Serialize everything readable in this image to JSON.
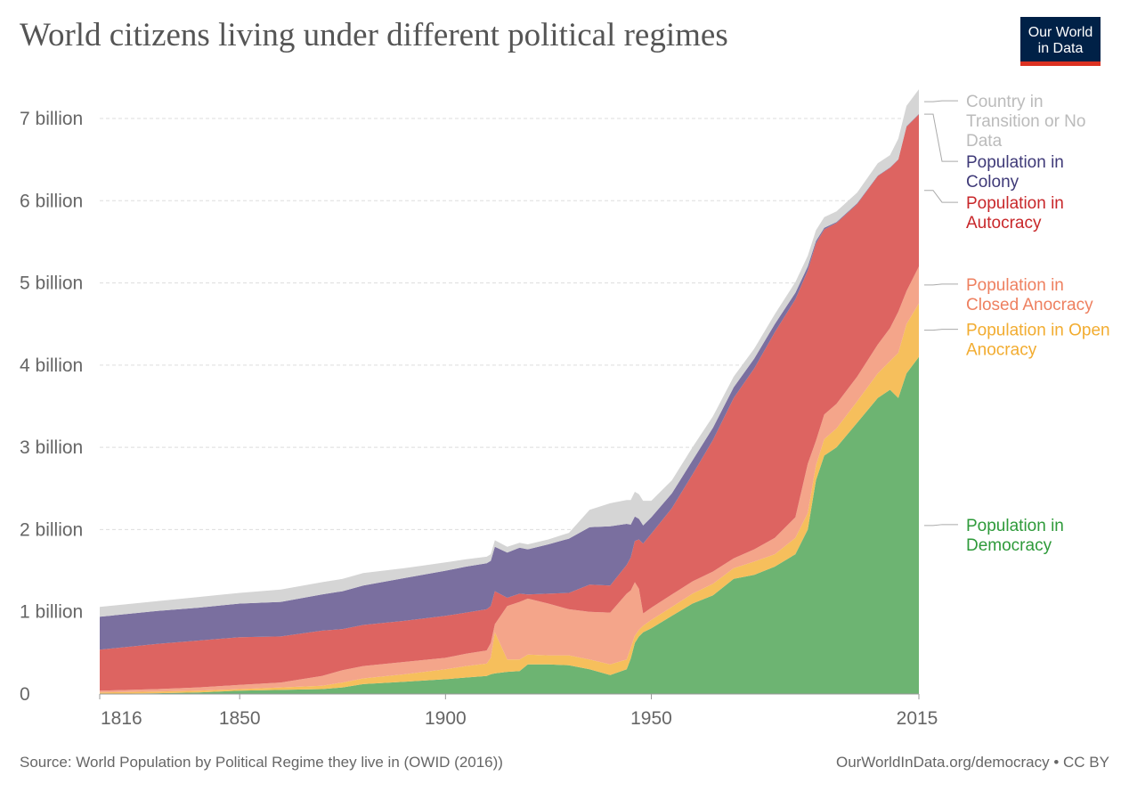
{
  "header": {
    "title": "World citizens living under different political regimes",
    "logo_line1": "Our World",
    "logo_line2": "in Data"
  },
  "footer": {
    "source": "Source: World Population by Political Regime they live in (OWID (2016))",
    "credit": "OurWorldInData.org/democracy • CC BY"
  },
  "chart_data": {
    "type": "area",
    "stacked": true,
    "title": "World citizens living under different political regimes",
    "xlabel": "",
    "ylabel": "",
    "xlim": [
      1816,
      2015
    ],
    "ylim": [
      0,
      7400000000
    ],
    "grid": "horizontal dashed",
    "legend": "right, labels at series end",
    "y_ticks": [
      {
        "value": 0,
        "label": "0"
      },
      {
        "value": 1000000000,
        "label": "1 billion"
      },
      {
        "value": 2000000000,
        "label": "2 billion"
      },
      {
        "value": 3000000000,
        "label": "3 billion"
      },
      {
        "value": 4000000000,
        "label": "4 billion"
      },
      {
        "value": 5000000000,
        "label": "5 billion"
      },
      {
        "value": 6000000000,
        "label": "6 billion"
      },
      {
        "value": 7000000000,
        "label": "7 billion"
      }
    ],
    "x_ticks": [
      {
        "value": 1816,
        "label": "1816"
      },
      {
        "value": 1850,
        "label": "1850"
      },
      {
        "value": 1900,
        "label": "1900"
      },
      {
        "value": 1950,
        "label": "1950"
      },
      {
        "value": 2015,
        "label": "2015"
      }
    ],
    "x": [
      1816,
      1830,
      1840,
      1850,
      1860,
      1870,
      1875,
      1880,
      1890,
      1900,
      1905,
      1910,
      1911,
      1912,
      1915,
      1918,
      1920,
      1925,
      1930,
      1935,
      1940,
      1944,
      1945,
      1946,
      1947,
      1948,
      1950,
      1955,
      1960,
      1965,
      1970,
      1975,
      1980,
      1985,
      1988,
      1990,
      1992,
      1995,
      2000,
      2005,
      2008,
      2010,
      2012,
      2015
    ],
    "series": [
      {
        "name": "Population in Democracy",
        "color": "#6db472",
        "values": [
          0,
          10000000,
          20000000,
          40000000,
          50000000,
          60000000,
          80000000,
          120000000,
          150000000,
          180000000,
          200000000,
          220000000,
          240000000,
          250000000,
          270000000,
          280000000,
          360000000,
          360000000,
          350000000,
          300000000,
          230000000,
          300000000,
          430000000,
          620000000,
          700000000,
          750000000,
          800000000,
          950000000,
          1100000000,
          1200000000,
          1400000000,
          1450000000,
          1550000000,
          1700000000,
          2000000000,
          2600000000,
          2900000000,
          3000000000,
          3300000000,
          3600000000,
          3700000000,
          3600000000,
          3900000000,
          4100000000
        ]
      },
      {
        "name": "Population in Open Anocracy",
        "color": "#f6bf5c",
        "values": [
          20000000,
          20000000,
          20000000,
          20000000,
          30000000,
          40000000,
          60000000,
          70000000,
          90000000,
          120000000,
          140000000,
          150000000,
          200000000,
          500000000,
          150000000,
          140000000,
          120000000,
          110000000,
          120000000,
          120000000,
          130000000,
          120000000,
          130000000,
          90000000,
          80000000,
          80000000,
          100000000,
          110000000,
          120000000,
          140000000,
          130000000,
          160000000,
          150000000,
          200000000,
          200000000,
          180000000,
          200000000,
          230000000,
          260000000,
          300000000,
          350000000,
          550000000,
          600000000,
          650000000
        ]
      },
      {
        "name": "Population in Closed Anocracy",
        "color": "#f4a58a",
        "values": [
          20000000,
          30000000,
          40000000,
          50000000,
          60000000,
          120000000,
          150000000,
          150000000,
          150000000,
          140000000,
          150000000,
          160000000,
          180000000,
          100000000,
          650000000,
          700000000,
          680000000,
          630000000,
          560000000,
          580000000,
          630000000,
          800000000,
          700000000,
          650000000,
          500000000,
          150000000,
          150000000,
          150000000,
          150000000,
          150000000,
          120000000,
          150000000,
          200000000,
          250000000,
          600000000,
          300000000,
          300000000,
          300000000,
          300000000,
          350000000,
          400000000,
          500000000,
          400000000,
          450000000
        ]
      },
      {
        "name": "Population in Autocracy",
        "color": "#dd6461",
        "values": [
          500000000,
          550000000,
          570000000,
          580000000,
          560000000,
          550000000,
          500000000,
          500000000,
          500000000,
          510000000,
          500000000,
          500000000,
          450000000,
          400000000,
          100000000,
          100000000,
          50000000,
          120000000,
          200000000,
          330000000,
          330000000,
          350000000,
          400000000,
          500000000,
          600000000,
          850000000,
          900000000,
          1050000000,
          1300000000,
          1600000000,
          1950000000,
          2200000000,
          2500000000,
          2650000000,
          2350000000,
          2400000000,
          2250000000,
          2200000000,
          2100000000,
          2050000000,
          1950000000,
          1850000000,
          2000000000,
          1850000000
        ]
      },
      {
        "name": "Population in Colony",
        "color": "#7a6f9f",
        "values": [
          400000000,
          400000000,
          400000000,
          410000000,
          420000000,
          440000000,
          460000000,
          480000000,
          520000000,
          550000000,
          560000000,
          560000000,
          550000000,
          540000000,
          550000000,
          560000000,
          550000000,
          600000000,
          660000000,
          700000000,
          720000000,
          500000000,
          400000000,
          300000000,
          250000000,
          220000000,
          200000000,
          180000000,
          170000000,
          150000000,
          130000000,
          120000000,
          100000000,
          80000000,
          50000000,
          30000000,
          20000000,
          10000000,
          10000000,
          5000000,
          5000000,
          5000000,
          5000000,
          5000000
        ]
      },
      {
        "name": "Country in Transition or No Data",
        "color": "#d5d5d5",
        "values": [
          120000000,
          120000000,
          130000000,
          130000000,
          150000000,
          150000000,
          150000000,
          150000000,
          120000000,
          100000000,
          90000000,
          80000000,
          80000000,
          80000000,
          70000000,
          60000000,
          60000000,
          60000000,
          70000000,
          210000000,
          280000000,
          290000000,
          300000000,
          300000000,
          300000000,
          300000000,
          200000000,
          160000000,
          160000000,
          140000000,
          130000000,
          120000000,
          120000000,
          130000000,
          130000000,
          130000000,
          130000000,
          130000000,
          130000000,
          150000000,
          150000000,
          250000000,
          250000000,
          300000000
        ]
      }
    ]
  }
}
